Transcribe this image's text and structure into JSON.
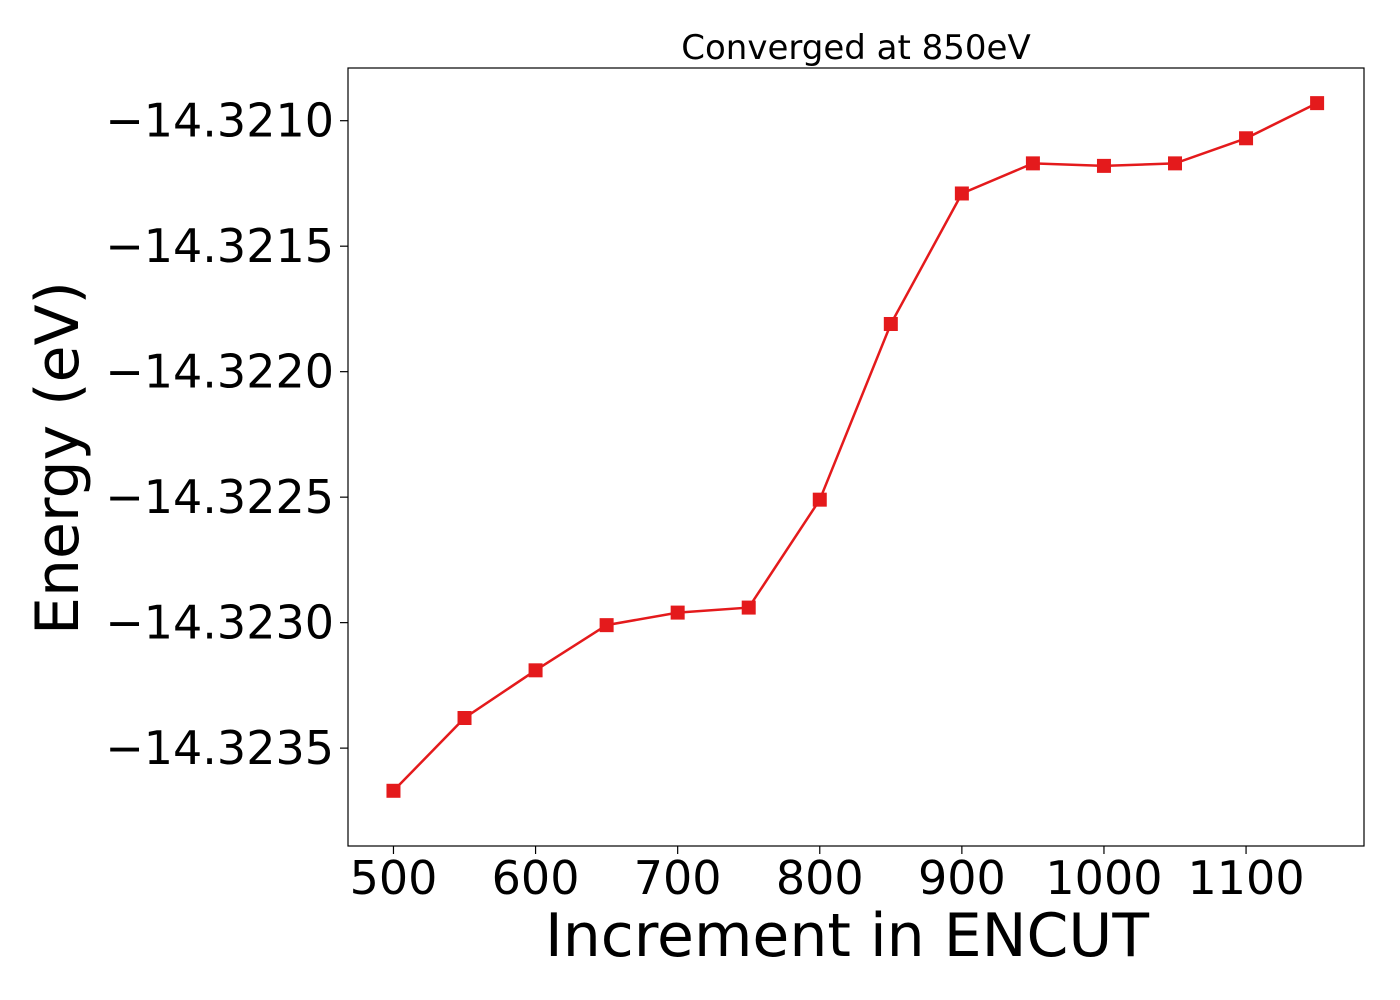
{
  "chart_data": {
    "type": "line",
    "title": "Converged at 850eV",
    "xlabel": "Increment in ENCUT",
    "ylabel": "Energy (eV)",
    "x": [
      500,
      550,
      600,
      650,
      700,
      750,
      800,
      850,
      900,
      950,
      1000,
      1050,
      1100,
      1150
    ],
    "series": [
      {
        "name": "",
        "color": "#e41a1c",
        "marker": "square",
        "values": [
          -14.32367,
          -14.32338,
          -14.32319,
          -14.32301,
          -14.32296,
          -14.32294,
          -14.32251,
          -14.32181,
          -14.32129,
          -14.32117,
          -14.32118,
          -14.32117,
          -14.32107,
          -14.32093
        ]
      }
    ],
    "xlim": [
      468,
      1183
    ],
    "ylim": [
      -14.32389,
      -14.32079
    ],
    "xticks": [
      500,
      600,
      700,
      800,
      900,
      1000,
      1100
    ],
    "xtick_labels": [
      "500",
      "600",
      "700",
      "800",
      "900",
      "1000",
      "1100"
    ],
    "yticks": [
      -14.321,
      -14.3215,
      -14.322,
      -14.3225,
      -14.323,
      -14.3235
    ],
    "ytick_labels": [
      "−14.3210",
      "−14.3215",
      "−14.3220",
      "−14.3225",
      "−14.3230",
      "−14.3235"
    ],
    "grid": false,
    "legend": "none"
  }
}
